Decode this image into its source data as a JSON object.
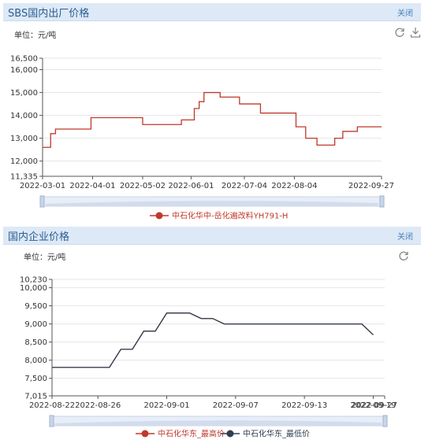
{
  "panels": [
    {
      "title": "SBS国内出厂价格",
      "close_label": "关闭"
    },
    {
      "title": "国内企业价格",
      "close_label": "关闭"
    }
  ],
  "chart_data": [
    {
      "type": "line",
      "unit_label": "单位：元/吨",
      "ylim": [
        11335,
        16500
      ],
      "y_ticks": [
        "11,335",
        "12,000",
        "13,000",
        "14,000",
        "15,000",
        "16,000",
        "16,500"
      ],
      "x_ticks": [
        "2022-03-01",
        "2022-04-01",
        "2022-05-02",
        "2022-06-01",
        "2022-07-04",
        "2022-08-04",
        "2022-09-27"
      ],
      "grid": true,
      "legend_position": "bottom",
      "series": [
        {
          "name": "中石化华中-岳化遍改料YH791-H",
          "color": "#c0392b",
          "step": true,
          "points": [
            [
              "2022-03-01",
              12600
            ],
            [
              "2022-03-06",
              13200
            ],
            [
              "2022-03-09",
              13400
            ],
            [
              "2022-03-31",
              13900
            ],
            [
              "2022-05-02",
              13600
            ],
            [
              "2022-05-26",
              13800
            ],
            [
              "2022-06-03",
              14300
            ],
            [
              "2022-06-06",
              14600
            ],
            [
              "2022-06-09",
              15000
            ],
            [
              "2022-06-19",
              14800
            ],
            [
              "2022-07-01",
              14500
            ],
            [
              "2022-07-14",
              14100
            ],
            [
              "2022-08-05",
              13500
            ],
            [
              "2022-08-11",
              13000
            ],
            [
              "2022-08-18",
              12700
            ],
            [
              "2022-08-29",
              13000
            ],
            [
              "2022-09-03",
              13300
            ],
            [
              "2022-09-12",
              13500
            ],
            [
              "2022-09-27",
              13500
            ]
          ]
        }
      ]
    },
    {
      "type": "line",
      "unit_label": "单位：元/吨",
      "ylim": [
        7015,
        10230
      ],
      "y_ticks": [
        "7,015",
        "7,500",
        "8,000",
        "8,500",
        "9,000",
        "9,500",
        "10,000",
        "10,230"
      ],
      "x_ticks": [
        "2022-08-22",
        "2022-08-26",
        "2022-09-01",
        "2022-09-07",
        "2022-09-13",
        "2022-09-19",
        "2022-09-27"
      ],
      "grid": true,
      "legend_position": "bottom",
      "series": [
        {
          "name": "中石化华东_最高价",
          "color": "#c0392b",
          "values": [
            7800,
            7800,
            7800,
            7800,
            7800,
            7800,
            8300,
            8300,
            8800,
            8800,
            9300,
            9300,
            9300,
            9150,
            9150,
            9000,
            9000,
            9000,
            9000,
            9000,
            9000,
            9000,
            9000,
            9000,
            9000,
            9000,
            9000,
            9000,
            8700
          ]
        },
        {
          "name": "中石化华东_最低价",
          "color": "#2c3e50",
          "values": [
            7800,
            7800,
            7800,
            7800,
            7800,
            7800,
            8300,
            8300,
            8800,
            8800,
            9300,
            9300,
            9300,
            9150,
            9150,
            9000,
            9000,
            9000,
            9000,
            9000,
            9000,
            9000,
            9000,
            9000,
            9000,
            9000,
            9000,
            9000,
            8700
          ]
        }
      ]
    }
  ]
}
